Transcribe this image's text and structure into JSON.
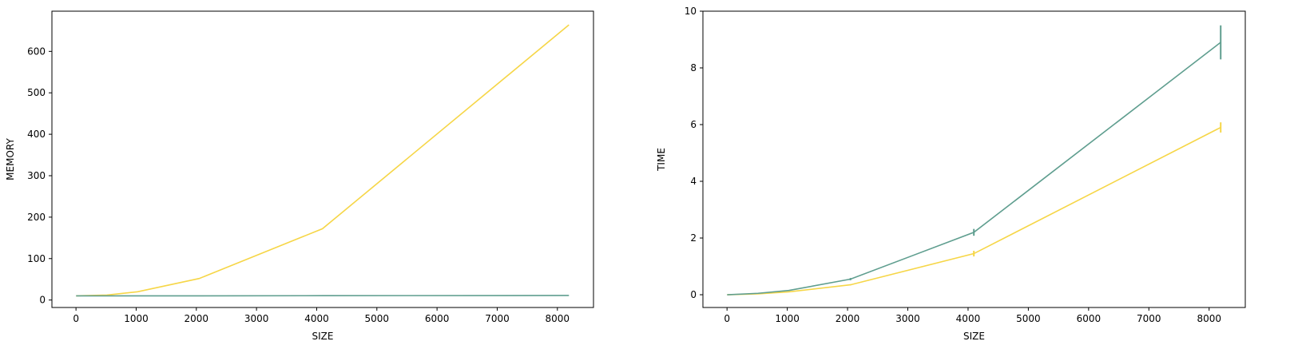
{
  "chart_data": [
    {
      "type": "line",
      "xlabel": "SIZE",
      "ylabel": "MEMORY",
      "xlim": [
        -400,
        8600
      ],
      "ylim": [
        -18,
        697
      ],
      "xticks": [
        0,
        1000,
        2000,
        3000,
        4000,
        5000,
        6000,
        7000,
        8000
      ],
      "yticks": [
        0,
        100,
        200,
        300,
        400,
        500,
        600
      ],
      "grid": false,
      "series": [
        {
          "color": "#f6d647",
          "x": [
            2,
            512,
            1024,
            2048,
            4096,
            8192
          ],
          "y": [
            10,
            12,
            20,
            52,
            172,
            664
          ],
          "err": [
            0,
            0,
            0,
            0,
            0,
            0
          ]
        },
        {
          "color": "#5f9e8f",
          "x": [
            2,
            512,
            1024,
            2048,
            4096,
            8192
          ],
          "y": [
            10,
            10,
            10,
            10,
            10.5,
            11
          ],
          "err": [
            0,
            0,
            0,
            0,
            0,
            0
          ]
        }
      ]
    },
    {
      "type": "line",
      "xlabel": "SIZE",
      "ylabel": "TIME",
      "xlim": [
        -400,
        8600
      ],
      "ylim": [
        -0.45,
        10.0
      ],
      "xticks": [
        0,
        1000,
        2000,
        3000,
        4000,
        5000,
        6000,
        7000,
        8000
      ],
      "yticks": [
        0,
        2,
        4,
        6,
        8,
        10
      ],
      "grid": false,
      "series": [
        {
          "color": "#f6d647",
          "x": [
            2,
            512,
            1024,
            2048,
            4096,
            8192
          ],
          "y": [
            0.0,
            0.03,
            0.1,
            0.35,
            1.45,
            5.9
          ],
          "err": [
            0,
            0,
            0.01,
            0.02,
            0.1,
            0.18
          ]
        },
        {
          "color": "#5f9e8f",
          "x": [
            2,
            512,
            1024,
            2048,
            4096,
            8192
          ],
          "y": [
            0.0,
            0.05,
            0.15,
            0.55,
            2.2,
            8.9
          ],
          "err": [
            0,
            0,
            0.01,
            0.04,
            0.12,
            0.6
          ]
        }
      ]
    }
  ]
}
